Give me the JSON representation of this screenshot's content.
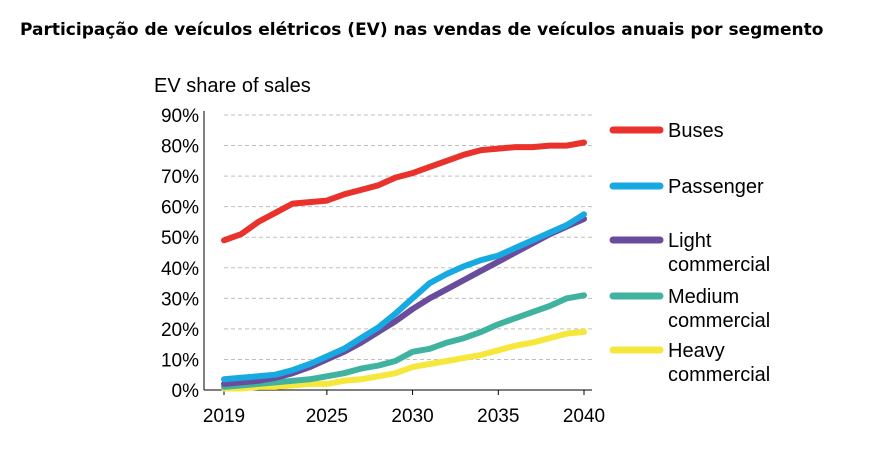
{
  "chart_data": {
    "type": "line",
    "title": "Participação de veículos elétricos (EV) nas vendas de veículos anuais por segmento",
    "ylabel": "EV share of sales",
    "xlabel": "",
    "xlim": [
      2019,
      2040
    ],
    "ylim": [
      0,
      90
    ],
    "x_ticks": [
      "2019",
      "2025",
      "2030",
      "2035",
      "2040"
    ],
    "y_ticks": [
      "0%",
      "10%",
      "20%",
      "30%",
      "40%",
      "50%",
      "60%",
      "70%",
      "80%",
      "90%"
    ],
    "grid": "horizontal dashed",
    "legend_position": "right",
    "x": [
      2019,
      2020,
      2021,
      2022,
      2023,
      2024,
      2025,
      2026,
      2027,
      2028,
      2029,
      2030,
      2031,
      2032,
      2033,
      2034,
      2035,
      2036,
      2037,
      2038,
      2039,
      2040
    ],
    "series": [
      {
        "name": "Buses",
        "color": "#e8322b",
        "values": [
          49,
          51,
          55,
          58,
          61,
          61.5,
          62,
          64,
          65.5,
          67,
          69.5,
          71,
          73,
          75,
          77,
          78.5,
          79,
          79.5,
          79.5,
          80,
          80,
          81
        ]
      },
      {
        "name": "Passenger",
        "color": "#17a9e1",
        "values": [
          3.5,
          4,
          4.5,
          5,
          6.5,
          8.5,
          11,
          13.5,
          17,
          20.5,
          25,
          30,
          35,
          38,
          40.5,
          42.5,
          44,
          46.5,
          49,
          51.5,
          54,
          57.5
        ]
      },
      {
        "name": "Light\ncommercial",
        "label_line1": "Light",
        "label_line2": "commercial",
        "color": "#6a4c9c",
        "values": [
          2,
          2.5,
          3,
          4,
          5.5,
          7.5,
          10,
          12.5,
          15.5,
          19,
          22.5,
          26.5,
          30,
          33,
          36,
          39,
          42,
          45,
          48,
          51,
          53.5,
          56
        ]
      },
      {
        "name": "Medium\ncommercial",
        "label_line1": "Medium",
        "label_line2": "commercial",
        "color": "#3fb39f",
        "values": [
          1,
          1.5,
          2,
          2.5,
          3,
          3.5,
          4.5,
          5.5,
          7,
          8,
          9.5,
          12.5,
          13.5,
          15.5,
          17,
          19,
          21.5,
          23.5,
          25.5,
          27.5,
          30,
          31
        ]
      },
      {
        "name": "Heavy\ncommercial",
        "label_line1": "Heavy",
        "label_line2": "commercial",
        "color": "#f5e73b",
        "values": [
          0.5,
          0.5,
          1,
          1,
          1.5,
          2,
          2,
          3,
          3.5,
          4.5,
          5.5,
          7.5,
          8.5,
          9.5,
          10.5,
          11.5,
          13,
          14.5,
          15.5,
          17,
          18.5,
          19
        ]
      }
    ]
  }
}
